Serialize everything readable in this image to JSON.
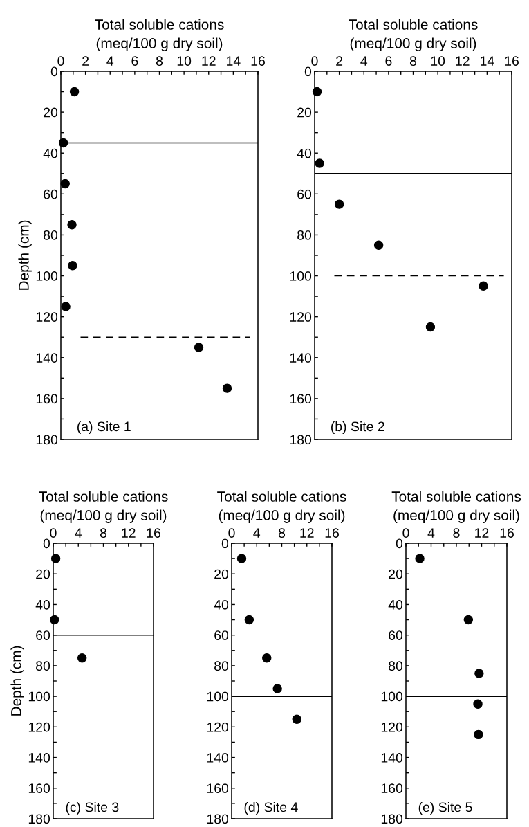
{
  "chart_data": [
    {
      "type": "scatter",
      "xlabel": "Total soluble cations\n(meq/100 g dry soil)",
      "ylabel": "Depth (cm)",
      "annotations": [
        "(a) Site 1"
      ],
      "marker": "circle",
      "grid": false,
      "series": [
        {
          "color": "#000000",
          "x": [
            1.1,
            0.2,
            0.35,
            0.9,
            0.95,
            0.4,
            11.2,
            13.5
          ],
          "values": [
            10,
            35,
            55,
            75,
            95,
            115,
            135,
            155
          ]
        }
      ],
      "xlim": [
        0,
        16
      ],
      "xticks": [
        0,
        {
          "value": 1,
          "label": null
        },
        2,
        {
          "value": 3,
          "label": null
        },
        4,
        {
          "value": 5,
          "label": null
        },
        6,
        {
          "value": 7,
          "label": null
        },
        8,
        {
          "value": 9,
          "label": null
        },
        10,
        {
          "value": 11,
          "label": null
        },
        12,
        {
          "value": 13,
          "label": null
        },
        14,
        {
          "value": 15,
          "label": null
        },
        16
      ],
      "ylim": [
        180,
        0
      ],
      "yticks": [
        0,
        {
          "value": 10,
          "label": null
        },
        20,
        {
          "value": 30,
          "label": null
        },
        40,
        {
          "value": 50,
          "label": null
        },
        60,
        {
          "value": 70,
          "label": null
        },
        80,
        {
          "value": 90,
          "label": null
        },
        100,
        {
          "value": 110,
          "label": null
        },
        120,
        {
          "value": 130,
          "label": null
        },
        140,
        {
          "value": 150,
          "label": null
        },
        160,
        {
          "value": 170,
          "label": null
        },
        180
      ],
      "ref_lines": [
        {
          "axis": "y",
          "value": 35,
          "line_style": "solid",
          "color": "#000000"
        },
        {
          "axis": "y",
          "value": 130,
          "line_style": "dashed",
          "color": "#000000"
        }
      ]
    },
    {
      "type": "scatter",
      "xlabel": "Total soluble cations\n(meq/100 g dry soil)",
      "annotations": [
        "(b) Site 2"
      ],
      "marker": "circle",
      "grid": false,
      "series": [
        {
          "color": "#000000",
          "x": [
            0.2,
            0.4,
            2.0,
            5.2,
            13.7,
            9.4
          ],
          "values": [
            10,
            45,
            65,
            85,
            105,
            125
          ]
        }
      ],
      "xlim": [
        0,
        16
      ],
      "xticks": [
        0,
        {
          "value": 1,
          "label": null
        },
        2,
        {
          "value": 3,
          "label": null
        },
        4,
        {
          "value": 5,
          "label": null
        },
        6,
        {
          "value": 7,
          "label": null
        },
        8,
        {
          "value": 9,
          "label": null
        },
        10,
        {
          "value": 11,
          "label": null
        },
        12,
        {
          "value": 13,
          "label": null
        },
        14,
        {
          "value": 15,
          "label": null
        },
        16
      ],
      "ylim": [
        180,
        0
      ],
      "yticks": [
        0,
        {
          "value": 10,
          "label": null
        },
        20,
        {
          "value": 30,
          "label": null
        },
        40,
        {
          "value": 50,
          "label": null
        },
        60,
        {
          "value": 70,
          "label": null
        },
        80,
        {
          "value": 90,
          "label": null
        },
        100,
        {
          "value": 110,
          "label": null
        },
        120,
        {
          "value": 130,
          "label": null
        },
        140,
        {
          "value": 150,
          "label": null
        },
        160,
        {
          "value": 170,
          "label": null
        },
        180
      ],
      "ref_lines": [
        {
          "axis": "y",
          "value": 50,
          "line_style": "solid",
          "color": "#000000"
        },
        {
          "axis": "y",
          "value": 100,
          "line_style": "dashed",
          "color": "#000000"
        }
      ]
    },
    {
      "type": "scatter",
      "xlabel": "Total soluble cations\n(meq/100 g dry soil)",
      "ylabel": "Depth (cm)",
      "annotations": [
        "(c) Site 3"
      ],
      "marker": "circle",
      "grid": false,
      "series": [
        {
          "color": "#000000",
          "x": [
            0.4,
            0.2,
            4.6
          ],
          "values": [
            10,
            50,
            75
          ]
        }
      ],
      "xlim": [
        0,
        16
      ],
      "xticks": [
        0,
        {
          "value": 2,
          "label": null
        },
        4,
        {
          "value": 6,
          "label": null
        },
        8,
        {
          "value": 10,
          "label": null
        },
        12,
        {
          "value": 14,
          "label": null
        },
        16
      ],
      "ylim": [
        180,
        0
      ],
      "yticks": [
        0,
        {
          "value": 10,
          "label": null
        },
        20,
        {
          "value": 30,
          "label": null
        },
        40,
        {
          "value": 50,
          "label": null
        },
        60,
        {
          "value": 70,
          "label": null
        },
        80,
        {
          "value": 90,
          "label": null
        },
        100,
        {
          "value": 110,
          "label": null
        },
        120,
        {
          "value": 130,
          "label": null
        },
        140,
        {
          "value": 150,
          "label": null
        },
        160,
        {
          "value": 170,
          "label": null
        },
        180
      ],
      "ref_lines": [
        {
          "axis": "y",
          "value": 60,
          "line_style": "solid",
          "color": "#000000"
        }
      ]
    },
    {
      "type": "scatter",
      "xlabel": "Total soluble cations\n(meq/100 g dry soil)",
      "annotations": [
        "(d) Site 4"
      ],
      "marker": "circle",
      "grid": false,
      "series": [
        {
          "color": "#000000",
          "x": [
            1.6,
            2.8,
            5.6,
            7.3,
            10.4
          ],
          "values": [
            10,
            50,
            75,
            95,
            115
          ]
        }
      ],
      "xlim": [
        0,
        16
      ],
      "xticks": [
        0,
        {
          "value": 2,
          "label": null
        },
        4,
        {
          "value": 6,
          "label": null
        },
        8,
        {
          "value": 10,
          "label": null
        },
        12,
        {
          "value": 14,
          "label": null
        },
        16
      ],
      "ylim": [
        180,
        0
      ],
      "yticks": [
        0,
        {
          "value": 10,
          "label": null
        },
        20,
        {
          "value": 30,
          "label": null
        },
        40,
        {
          "value": 50,
          "label": null
        },
        60,
        {
          "value": 70,
          "label": null
        },
        80,
        {
          "value": 90,
          "label": null
        },
        100,
        {
          "value": 110,
          "label": null
        },
        120,
        {
          "value": 130,
          "label": null
        },
        140,
        {
          "value": 150,
          "label": null
        },
        160,
        {
          "value": 170,
          "label": null
        },
        180
      ],
      "ref_lines": [
        {
          "axis": "y",
          "value": 100,
          "line_style": "solid",
          "color": "#000000"
        }
      ]
    },
    {
      "type": "scatter",
      "xlabel": "Total soluble cations\n(meq/100 g dry soil)",
      "annotations": [
        "(e) Site 5"
      ],
      "marker": "circle",
      "grid": false,
      "series": [
        {
          "color": "#000000",
          "x": [
            2.2,
            9.9,
            11.6,
            11.4,
            11.5
          ],
          "values": [
            10,
            50,
            85,
            105,
            125
          ]
        }
      ],
      "xlim": [
        0,
        16
      ],
      "xticks": [
        0,
        {
          "value": 2,
          "label": null
        },
        4,
        {
          "value": 6,
          "label": null
        },
        8,
        {
          "value": 10,
          "label": null
        },
        12,
        {
          "value": 14,
          "label": null
        },
        16
      ],
      "ylim": [
        180,
        0
      ],
      "yticks": [
        0,
        {
          "value": 10,
          "label": null
        },
        20,
        {
          "value": 30,
          "label": null
        },
        40,
        {
          "value": 50,
          "label": null
        },
        60,
        {
          "value": 70,
          "label": null
        },
        80,
        {
          "value": 90,
          "label": null
        },
        100,
        {
          "value": 110,
          "label": null
        },
        120,
        {
          "value": 130,
          "label": null
        },
        140,
        {
          "value": 150,
          "label": null
        },
        160,
        {
          "value": 170,
          "label": null
        },
        180
      ],
      "ref_lines": [
        {
          "axis": "y",
          "value": 100,
          "line_style": "solid",
          "color": "#000000"
        }
      ]
    }
  ]
}
